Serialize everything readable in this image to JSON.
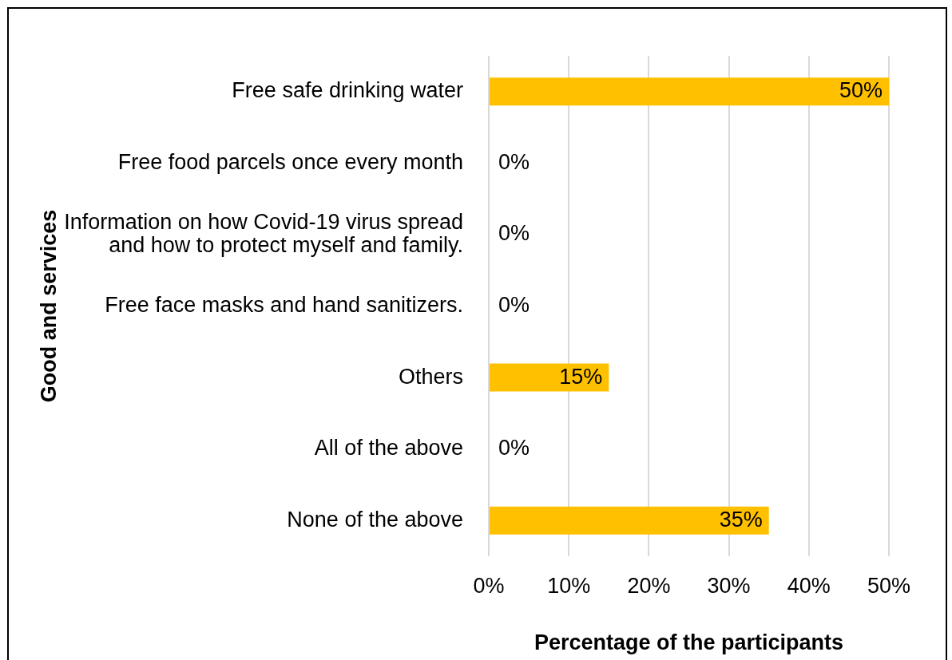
{
  "chart_data": {
    "type": "bar",
    "orientation": "horizontal",
    "categories": [
      "Free safe drinking water",
      "Free food parcels once every month",
      "Information on how Covid-19 virus spread and how to protect myself and family.",
      "Free face masks and hand sanitizers.",
      "Others",
      "All of the above",
      "None of the above"
    ],
    "values": [
      50,
      0,
      0,
      0,
      15,
      0,
      35
    ],
    "color": "#ffc000",
    "value_labels": [
      "50%",
      "0%",
      "0%",
      "0%",
      "15%",
      "0%",
      "35%"
    ],
    "xlabel": "Percentage of the participants",
    "ylabel": "Good and services",
    "xlim": [
      0,
      50
    ],
    "xticks": [
      {
        "value": 0,
        "label": "0%"
      },
      {
        "value": 10,
        "label": "10%"
      },
      {
        "value": 20,
        "label": "20%"
      },
      {
        "value": 30,
        "label": "30%"
      },
      {
        "value": 40,
        "label": "40%"
      },
      {
        "value": 50,
        "label": "50%"
      }
    ],
    "grid": "x"
  }
}
